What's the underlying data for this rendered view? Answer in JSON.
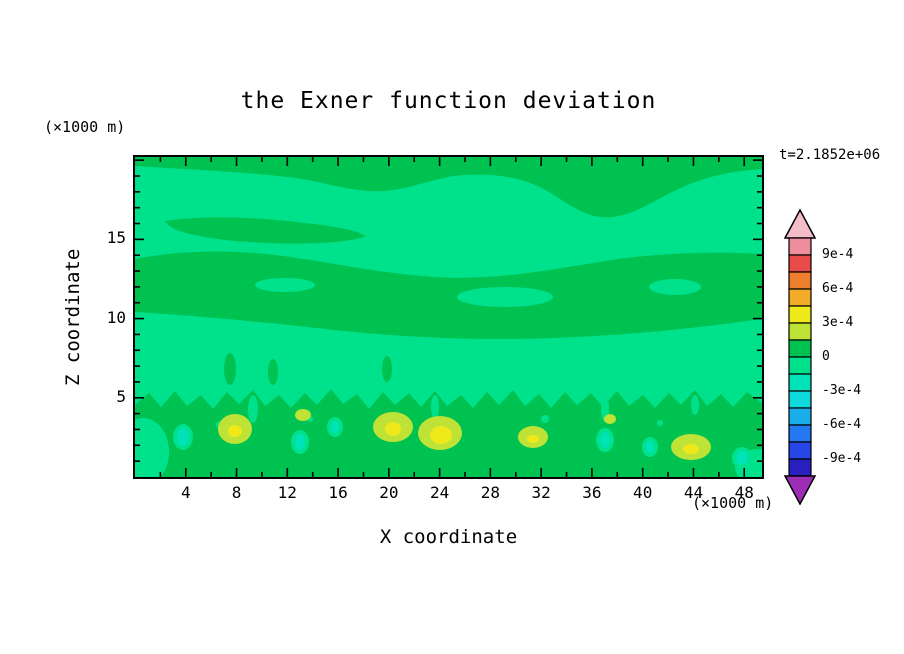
{
  "figure": {
    "title": "the Exner function deviation",
    "time_label": "t=2.1852e+06",
    "x_axis": {
      "label": "X coordinate",
      "unit": "(×1000 m)"
    },
    "y_axis": {
      "label": "Z coordinate",
      "unit": "(×1000 m)"
    }
  },
  "chart_data": {
    "type": "heatmap",
    "subtype": "filled-contour",
    "title": "the Exner function deviation",
    "xlabel": "X coordinate",
    "ylabel": "Z coordinate",
    "axis_units": "×1000 m",
    "time_annotation": "t=2.1852e+06",
    "xlim": [
      0,
      49.4
    ],
    "ylim": [
      0,
      20.2
    ],
    "x_major_ticks": [
      4,
      8,
      12,
      16,
      20,
      24,
      28,
      32,
      36,
      40,
      44,
      48
    ],
    "x_minor_step": 2,
    "y_labeled_ticks": [
      5,
      10,
      15
    ],
    "y_minor_step": 1,
    "contour_interval": 0.00015,
    "colorbar": {
      "tick_labels": [
        "9e-4",
        "6e-4",
        "3e-4",
        "0",
        "-3e-4",
        "-6e-4",
        "-9e-4"
      ],
      "over_color": "#f3bdc9",
      "under_color": "#9c2eb5",
      "bands_top_to_bottom": [
        {
          "range": [
            0.0009,
            0.00105
          ],
          "color": "#ee8e9c"
        },
        {
          "range": [
            0.00075,
            0.0009
          ],
          "color": "#e94b49"
        },
        {
          "range": [
            0.0006,
            0.00075
          ],
          "color": "#ef7d2e"
        },
        {
          "range": [
            0.00045,
            0.0006
          ],
          "color": "#f2ac29"
        },
        {
          "range": [
            0.0003,
            0.00045
          ],
          "color": "#efe91c"
        },
        {
          "range": [
            0.00015,
            0.0003
          ],
          "color": "#bee336"
        },
        {
          "range": [
            0.0,
            0.00015
          ],
          "color": "#00c251"
        },
        {
          "range": [
            -0.00015,
            0.0
          ],
          "color": "#00e18c"
        },
        {
          "range": [
            -0.0003,
            -0.00015
          ],
          "color": "#00e2b8"
        },
        {
          "range": [
            -0.00045,
            -0.0003
          ],
          "color": "#10d9dd"
        },
        {
          "range": [
            -0.0006,
            -0.00045
          ],
          "color": "#19aeea"
        },
        {
          "range": [
            -0.00075,
            -0.0006
          ],
          "color": "#2479f0"
        },
        {
          "range": [
            -0.0009,
            -0.00075
          ],
          "color": "#2746e8"
        },
        {
          "range": [
            -0.00105,
            -0.0009
          ],
          "color": "#2b1fc0"
        }
      ]
    },
    "field_features": [
      {
        "band": "0 to 1.5e-4",
        "color": "#00c251",
        "description": "green regions: lower third of domain (z below ~5) and long horizontal streaks near z~10-13 and z~17-20"
      },
      {
        "band": "-1.5e-4 to 0",
        "color": "#00e18c",
        "description": "light-green background over most of the upper domain"
      },
      {
        "band": "1.5e-4 to 3e-4",
        "color": "#bee336",
        "description": "yellow-green patches near the surface around x~8, 13, 20-26, 31, 43-46"
      },
      {
        "band": "3e-4 to 4.5e-4",
        "color": "#efe91c",
        "description": "yellow cores inside the surface patches around x~8, 20, 24-26, 31, 44"
      },
      {
        "band": "-3e-4 to -1.5e-4",
        "color": "#00e2b8",
        "description": "small cyan spots near the surface around x~4, 13, 16, 37, 40, 47"
      }
    ]
  }
}
